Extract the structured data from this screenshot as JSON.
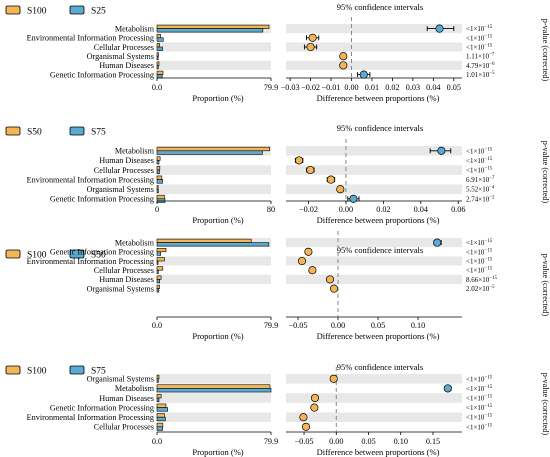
{
  "colors": {
    "orange": "#F5B556",
    "blue": "#5AAAD1",
    "band": "#E8E8E8",
    "dashed": "#888888"
  },
  "chart_data": [
    {
      "type": "bar",
      "legend": [
        {
          "name": "S100",
          "color": "#F5B556"
        },
        {
          "name": "S25",
          "color": "#5AAAD1"
        }
      ],
      "categories": [
        "Metabolism",
        "Environmental Information Processing",
        "Cellular Processes",
        "Organismal Systems",
        "Human Diseases",
        "Genetic Information Processing"
      ],
      "series": [
        {
          "name": "S100",
          "values": [
            78.5,
            2.5,
            1.9,
            1.1,
            1.4,
            4.2
          ]
        },
        {
          "name": "S25",
          "values": [
            74.2,
            4.4,
            3.9,
            0.8,
            0.9,
            3.6
          ]
        }
      ],
      "prop_xticks": [
        "0.0",
        "79.9"
      ],
      "prop_xlim": [
        0,
        79.9
      ],
      "prop_xlabel": "Proportion (%)",
      "ci_title": "95% confidence intervals",
      "ci_xlabel": "Difference between proportions (%)",
      "ci_xlim": [
        -0.032,
        0.054
      ],
      "ci_xticks": [
        -0.03,
        -0.02,
        -0.01,
        0.0,
        0.01,
        0.02,
        0.03,
        0.04,
        0.05
      ],
      "ci_xtick_labels": [
        "−0.03",
        "−0.02",
        "−0.01",
        "0.00",
        "0.01",
        "0.02",
        "0.03",
        "0.04",
        "0.05"
      ],
      "differences": [
        {
          "diff": 0.043,
          "lo": 0.037,
          "hi": 0.05,
          "favors": "S25"
        },
        {
          "diff": -0.019,
          "lo": -0.022,
          "hi": -0.016,
          "favors": "S100"
        },
        {
          "diff": -0.02,
          "lo": -0.023,
          "hi": -0.017,
          "favors": "S100"
        },
        {
          "diff": -0.004,
          "lo": -0.005,
          "hi": -0.003,
          "favors": "S100"
        },
        {
          "diff": -0.004,
          "lo": -0.005,
          "hi": -0.003,
          "favors": "S100"
        },
        {
          "diff": 0.006,
          "lo": 0.003,
          "hi": 0.009,
          "favors": "S25"
        }
      ],
      "pvalues": [
        {
          "main": "<1×10",
          "exp": "−15"
        },
        {
          "main": "<1×10",
          "exp": "−15"
        },
        {
          "main": "<1×10",
          "exp": "−15"
        },
        {
          "main": "1.11×10",
          "exp": "−7"
        },
        {
          "main": "4.79×10",
          "exp": "−6"
        },
        {
          "main": "1.01×10",
          "exp": "−5"
        }
      ],
      "pvalue_label": "p-value (corrected)"
    },
    {
      "type": "bar",
      "legend": [
        {
          "name": "S50",
          "color": "#F5B556"
        },
        {
          "name": "S75",
          "color": "#5AAAD1"
        }
      ],
      "categories": [
        "Metabolism",
        "Human Diseases",
        "Cellular Processes",
        "Environmental Information Processing",
        "Organismal Systems",
        "Genetic Information Processing"
      ],
      "series": [
        {
          "name": "S50",
          "values": [
            79.0,
            2.2,
            2.0,
            3.4,
            0.8,
            5.2
          ]
        },
        {
          "name": "S75",
          "values": [
            74.0,
            1.4,
            1.7,
            3.9,
            0.9,
            5.6
          ]
        }
      ],
      "prop_xticks": [
        "0",
        "80"
      ],
      "prop_xlim": [
        0,
        80
      ],
      "prop_xlabel": "Proportion (%)",
      "ci_title": "95% confidence intervals",
      "ci_xlabel": "Difference between proportions (%)",
      "ci_xlim": [
        -0.032,
        0.062
      ],
      "ci_xticks": [
        -0.02,
        0.0,
        0.02,
        0.04,
        0.06
      ],
      "ci_xtick_labels": [
        "−0.02",
        "0.00",
        "0.02",
        "0.04",
        "0.06"
      ],
      "differences": [
        {
          "diff": 0.051,
          "lo": 0.045,
          "hi": 0.056,
          "favors": "S75"
        },
        {
          "diff": -0.025,
          "lo": -0.027,
          "hi": -0.023,
          "favors": "S50"
        },
        {
          "diff": -0.019,
          "lo": -0.021,
          "hi": -0.017,
          "favors": "S50"
        },
        {
          "diff": -0.008,
          "lo": -0.01,
          "hi": -0.006,
          "favors": "S50"
        },
        {
          "diff": -0.003,
          "lo": -0.004,
          "hi": -0.002,
          "favors": "S50"
        },
        {
          "diff": 0.004,
          "lo": 0.001,
          "hi": 0.007,
          "favors": "S75"
        }
      ],
      "pvalues": [
        {
          "main": "<1×10",
          "exp": "−15"
        },
        {
          "main": "<1×10",
          "exp": "−15"
        },
        {
          "main": "<1×10",
          "exp": "−15"
        },
        {
          "main": "6.91×10",
          "exp": "−7"
        },
        {
          "main": "5.52×10",
          "exp": "−4"
        },
        {
          "main": "2.74×10",
          "exp": "−2"
        }
      ],
      "pvalue_label": "p-value (corrected)"
    },
    {
      "type": "bar",
      "legend": [
        {
          "name": "S100",
          "color": "#F5B556"
        },
        {
          "name": "S50",
          "color": "#5AAAD1"
        }
      ],
      "categories": [
        "Metabolism",
        "Genetic Information Processing",
        "Environmental Information Processing",
        "Cellular Processes",
        "Human Diseases",
        "Organismal Systems"
      ],
      "series": [
        {
          "name": "S100",
          "values": [
            66.0,
            6.3,
            5.2,
            4.1,
            2.9,
            1.8
          ]
        },
        {
          "name": "S50",
          "values": [
            78.4,
            2.6,
            0.7,
            0.9,
            1.9,
            1.3
          ]
        }
      ],
      "prop_xticks": [
        "0.0",
        "79.9"
      ],
      "prop_xlim": [
        0,
        79.9
      ],
      "prop_xlabel": "Proportion (%)",
      "ci_title": "95% confidence intervals",
      "ci_xlabel": "Difference between proportions (%)",
      "ci_xlim": [
        -0.065,
        0.155
      ],
      "ci_xticks": [
        -0.05,
        0.0,
        0.05,
        0.1
      ],
      "ci_xtick_labels": [
        "−0.05",
        "0.00",
        "0.05",
        "0.10"
      ],
      "differences": [
        {
          "diff": 0.124,
          "lo": 0.12,
          "hi": 0.129,
          "favors": "S50"
        },
        {
          "diff": -0.037,
          "lo": -0.04,
          "hi": -0.034,
          "favors": "S100"
        },
        {
          "diff": -0.045,
          "lo": -0.047,
          "hi": -0.043,
          "favors": "S100"
        },
        {
          "diff": -0.032,
          "lo": -0.034,
          "hi": -0.03,
          "favors": "S100"
        },
        {
          "diff": -0.01,
          "lo": -0.012,
          "hi": -0.008,
          "favors": "S100"
        },
        {
          "diff": -0.005,
          "lo": -0.006,
          "hi": -0.004,
          "favors": "S100"
        }
      ],
      "pvalues": [
        {
          "main": "<1×10",
          "exp": "−15"
        },
        {
          "main": "<1×10",
          "exp": "−15"
        },
        {
          "main": "<1×10",
          "exp": "−15"
        },
        {
          "main": "<1×10",
          "exp": "−15"
        },
        {
          "main": "8.66×10",
          "exp": "−15"
        },
        {
          "main": "2.02×10",
          "exp": "−5"
        }
      ],
      "pvalue_label": "p-value (corrected)"
    },
    {
      "type": "bar",
      "legend": [
        {
          "name": "S100",
          "color": "#F5B556"
        },
        {
          "name": "S75",
          "color": "#5AAAD1"
        }
      ],
      "categories": [
        "Organismal Systems",
        "Metabolism",
        "Human Diseases",
        "Genetic Information Processing",
        "Environmental Information Processing",
        "Cellular Processes"
      ],
      "series": [
        {
          "name": "S100",
          "values": [
            1.4,
            79.2,
            2.9,
            6.3,
            5.2,
            4.1
          ]
        },
        {
          "name": "S75",
          "values": [
            0.9,
            79.9,
            1.4,
            7.5,
            5.9,
            3.9
          ]
        }
      ],
      "prop_xticks": [
        "0.0",
        "79.9"
      ],
      "prop_xlim": [
        0,
        79.9
      ],
      "prop_xlabel": "Proportion (%)",
      "ci_title": "95% confidence intervals",
      "ci_xlabel": "Difference between proportions (%)",
      "ci_xlim": [
        -0.078,
        0.195
      ],
      "ci_xticks": [
        -0.05,
        0.0,
        0.05,
        0.1,
        0.15
      ],
      "ci_xtick_labels": [
        "−0.05",
        "0.00",
        "0.05",
        "0.10",
        "0.15"
      ],
      "differences": [
        {
          "diff": -0.004,
          "lo": -0.005,
          "hi": -0.003,
          "favors": "S100"
        },
        {
          "diff": 0.173,
          "lo": 0.169,
          "hi": 0.178,
          "favors": "S75"
        },
        {
          "diff": -0.033,
          "lo": -0.035,
          "hi": -0.031,
          "favors": "S100"
        },
        {
          "diff": -0.034,
          "lo": -0.036,
          "hi": -0.032,
          "favors": "S100"
        },
        {
          "diff": -0.051,
          "lo": -0.053,
          "hi": -0.049,
          "favors": "S100"
        },
        {
          "diff": -0.047,
          "lo": -0.049,
          "hi": -0.045,
          "favors": "S100"
        }
      ],
      "pvalues": [
        {
          "main": "<1×10",
          "exp": "−15"
        },
        {
          "main": "<1×10",
          "exp": "−15"
        },
        {
          "main": "<1×10",
          "exp": "−15"
        },
        {
          "main": "<1×10",
          "exp": "−15"
        },
        {
          "main": "<1×10",
          "exp": "−15"
        },
        {
          "main": "<1×10",
          "exp": "−15"
        }
      ],
      "pvalue_label": "p-value (corrected)"
    }
  ]
}
